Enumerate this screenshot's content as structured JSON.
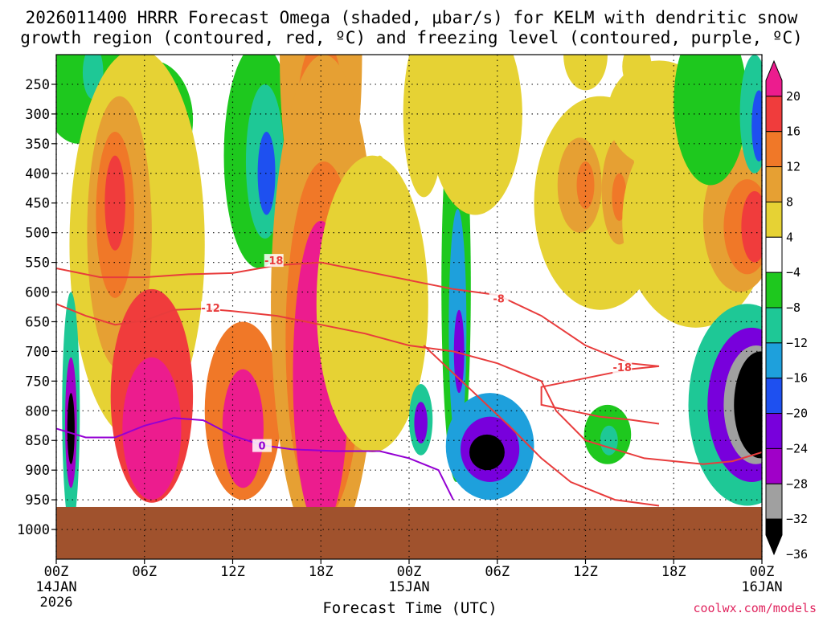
{
  "chart_data": {
    "type": "heatmap",
    "title_line1": "2026011400 HRRR Forecast Omega (shaded, μbar/s) for KELM with dendritic snow",
    "title_line2": "growth region (contoured, red, ºC) and freezing level (contoured, purple, ºC)",
    "xlabel": "Forecast Time (UTC)",
    "credit": "coolwx.com/models",
    "x_range_hours": [
      0,
      48
    ],
    "y_range_hpa": [
      200,
      1050
    ],
    "x_ticks": [
      {
        "hour": 0,
        "label": "00Z",
        "sub1": "14JAN",
        "sub2": "2026"
      },
      {
        "hour": 6,
        "label": "06Z",
        "sub1": "",
        "sub2": ""
      },
      {
        "hour": 12,
        "label": "12Z",
        "sub1": "",
        "sub2": ""
      },
      {
        "hour": 18,
        "label": "18Z",
        "sub1": "",
        "sub2": ""
      },
      {
        "hour": 24,
        "label": "00Z",
        "sub1": "15JAN",
        "sub2": ""
      },
      {
        "hour": 30,
        "label": "06Z",
        "sub1": "",
        "sub2": ""
      },
      {
        "hour": 36,
        "label": "12Z",
        "sub1": "",
        "sub2": ""
      },
      {
        "hour": 42,
        "label": "18Z",
        "sub1": "",
        "sub2": ""
      },
      {
        "hour": 48,
        "label": "00Z",
        "sub1": "16JAN",
        "sub2": ""
      }
    ],
    "y_ticks": [
      {
        "p": 250,
        "label": "250"
      },
      {
        "p": 300,
        "label": "300"
      },
      {
        "p": 350,
        "label": "350"
      },
      {
        "p": 400,
        "label": "400"
      },
      {
        "p": 450,
        "label": "450"
      },
      {
        "p": 500,
        "label": "500"
      },
      {
        "p": 550,
        "label": "550"
      },
      {
        "p": 600,
        "label": "600"
      },
      {
        "p": 650,
        "label": "650"
      },
      {
        "p": 700,
        "label": "700"
      },
      {
        "p": 750,
        "label": "750"
      },
      {
        "p": 800,
        "label": "800"
      },
      {
        "p": 850,
        "label": "850"
      },
      {
        "p": 900,
        "label": "900"
      },
      {
        "p": 950,
        "label": "950"
      },
      {
        "p": 1000,
        "label": "1000"
      }
    ],
    "colorbar": {
      "labels": [
        "20",
        "16",
        "12",
        "8",
        "4",
        "−4",
        "−8",
        "−12",
        "−16",
        "−20",
        "−24",
        "−28",
        "−32",
        "−36"
      ],
      "colors": [
        "#ec1c8e",
        "#f03c3c",
        "#f07828",
        "#e6a033",
        "#e6d234",
        "#ffffff",
        "#1ec81e",
        "#1ec896",
        "#1ea0dc",
        "#1e50f0",
        "#7800dc",
        "#a000c8",
        "#a0a0a0",
        "#000000"
      ]
    },
    "surface": {
      "p_top": 962,
      "color": "#a0522d"
    },
    "omega_blobs": [
      {
        "t": 1.5,
        "p": 200,
        "rt": 3.0,
        "rp": 150,
        "v": -6
      },
      {
        "t": 2.5,
        "p": 230,
        "rt": 0.7,
        "rp": 45,
        "v": -10
      },
      {
        "t": 6.5,
        "p": 310,
        "rt": 2.8,
        "rp": 100,
        "v": -6
      },
      {
        "t": 13.8,
        "p": 370,
        "rt": 2.4,
        "rp": 190,
        "v": -6
      },
      {
        "t": 14.2,
        "p": 380,
        "rt": 1.3,
        "rp": 130,
        "v": -10
      },
      {
        "t": 14.3,
        "p": 400,
        "rt": 0.6,
        "rp": 70,
        "v": -16
      },
      {
        "t": 9.3,
        "p": 455,
        "rt": 0.3,
        "rp": 20,
        "v": -6
      },
      {
        "t": 5.5,
        "p": 520,
        "rt": 4.6,
        "rp": 330,
        "v": 5
      },
      {
        "t": 4.3,
        "p": 500,
        "rt": 2.2,
        "rp": 230,
        "v": 8
      },
      {
        "t": 4.0,
        "p": 470,
        "rt": 1.3,
        "rp": 140,
        "v": 12
      },
      {
        "t": 4.0,
        "p": 450,
        "rt": 0.7,
        "rp": 80,
        "v": 16
      },
      {
        "t": 6.5,
        "p": 775,
        "rt": 2.8,
        "rp": 180,
        "v": 16
      },
      {
        "t": 6.5,
        "p": 830,
        "rt": 2.0,
        "rp": 120,
        "v": 21
      },
      {
        "t": 1.0,
        "p": 800,
        "rt": 0.6,
        "rp": 200,
        "v": -10
      },
      {
        "t": 1.0,
        "p": 820,
        "rt": 0.4,
        "rp": 110,
        "v": -24
      },
      {
        "t": 1.0,
        "p": 830,
        "rt": 0.25,
        "rp": 60,
        "v": -40
      },
      {
        "t": 12.7,
        "p": 800,
        "rt": 2.6,
        "rp": 150,
        "v": 12
      },
      {
        "t": 12.7,
        "p": 830,
        "rt": 1.4,
        "rp": 100,
        "v": 21
      },
      {
        "t": 18.0,
        "p": 200,
        "rt": 2.8,
        "rp": 330,
        "v": 8
      },
      {
        "t": 18.0,
        "p": 300,
        "rt": 1.6,
        "rp": 130,
        "v": 12
      },
      {
        "t": 18.2,
        "p": 620,
        "rt": 3.6,
        "rp": 420,
        "v": 9
      },
      {
        "t": 18.2,
        "p": 680,
        "rt": 2.6,
        "rp": 300,
        "v": 14
      },
      {
        "t": 18.0,
        "p": 740,
        "rt": 1.9,
        "rp": 260,
        "v": 21
      },
      {
        "t": 21.5,
        "p": 620,
        "rt": 3.8,
        "rp": 250,
        "v": 5
      },
      {
        "t": 25.0,
        "p": 300,
        "rt": 1.4,
        "rp": 140,
        "v": 5
      },
      {
        "t": 22.0,
        "p": 430,
        "rt": 0.6,
        "rp": 60,
        "v": 5
      },
      {
        "t": 27.2,
        "p": 590,
        "rt": 1.0,
        "rp": 330,
        "v": -6
      },
      {
        "t": 27.3,
        "p": 660,
        "rt": 0.6,
        "rp": 200,
        "v": -12
      },
      {
        "t": 27.4,
        "p": 700,
        "rt": 0.35,
        "rp": 70,
        "v": -20
      },
      {
        "t": 29.5,
        "p": 860,
        "rt": 3.0,
        "rp": 90,
        "v": -12
      },
      {
        "t": 29.5,
        "p": 865,
        "rt": 2.0,
        "rp": 55,
        "v": -22
      },
      {
        "t": 29.3,
        "p": 870,
        "rt": 1.2,
        "rp": 30,
        "v": -33
      },
      {
        "t": 29.3,
        "p": 872,
        "rt": 0.5,
        "rp": 15,
        "v": -40
      },
      {
        "t": 24.8,
        "p": 815,
        "rt": 0.8,
        "rp": 60,
        "v": -10
      },
      {
        "t": 24.8,
        "p": 820,
        "rt": 0.45,
        "rp": 35,
        "v": -20
      },
      {
        "t": 28.5,
        "p": 300,
        "rt": 3.2,
        "rp": 170,
        "v": 5
      },
      {
        "t": 37.0,
        "p": 450,
        "rt": 4.5,
        "rp": 180,
        "v": 5
      },
      {
        "t": 35.6,
        "p": 420,
        "rt": 1.5,
        "rp": 80,
        "v": 10
      },
      {
        "t": 38.3,
        "p": 430,
        "rt": 1.2,
        "rp": 90,
        "v": 10
      },
      {
        "t": 36.0,
        "p": 420,
        "rt": 0.6,
        "rp": 40,
        "v": 14
      },
      {
        "t": 38.3,
        "p": 440,
        "rt": 0.5,
        "rp": 40,
        "v": 14
      },
      {
        "t": 36.0,
        "p": 200,
        "rt": 1.5,
        "rp": 60,
        "v": 5
      },
      {
        "t": 41.0,
        "p": 300,
        "rt": 3.5,
        "rp": 90,
        "v": 5
      },
      {
        "t": 39.5,
        "p": 220,
        "rt": 1.0,
        "rp": 40,
        "v": 5
      },
      {
        "t": 43.5,
        "p": 480,
        "rt": 5.0,
        "rp": 180,
        "v": 5
      },
      {
        "t": 46.5,
        "p": 480,
        "rt": 2.5,
        "rp": 120,
        "v": 9
      },
      {
        "t": 47.0,
        "p": 490,
        "rt": 1.6,
        "rp": 80,
        "v": 14
      },
      {
        "t": 47.5,
        "p": 490,
        "rt": 0.9,
        "rp": 60,
        "v": 18
      },
      {
        "t": 44.5,
        "p": 280,
        "rt": 2.5,
        "rp": 140,
        "v": -6
      },
      {
        "t": 47.5,
        "p": 300,
        "rt": 1.0,
        "rp": 100,
        "v": -10
      },
      {
        "t": 47.8,
        "p": 320,
        "rt": 0.5,
        "rp": 60,
        "v": -16
      },
      {
        "t": 47.0,
        "p": 790,
        "rt": 4.0,
        "rp": 170,
        "v": -10
      },
      {
        "t": 47.3,
        "p": 790,
        "rt": 3.0,
        "rp": 130,
        "v": -20
      },
      {
        "t": 47.6,
        "p": 790,
        "rt": 2.2,
        "rp": 100,
        "v": -30
      },
      {
        "t": 47.9,
        "p": 790,
        "rt": 1.8,
        "rp": 90,
        "v": -40
      },
      {
        "t": 37.5,
        "p": 840,
        "rt": 1.6,
        "rp": 50,
        "v": -7
      },
      {
        "t": 37.6,
        "p": 850,
        "rt": 0.6,
        "rp": 25,
        "v": -11
      }
    ],
    "contours": [
      {
        "name": "dgz-top-minus18",
        "label": "-18",
        "label_t": 14.8,
        "label_p": 548,
        "color": "#e83c3c",
        "points": [
          [
            0,
            560
          ],
          [
            3,
            575
          ],
          [
            6,
            575
          ],
          [
            9,
            570
          ],
          [
            12,
            568
          ],
          [
            15,
            555
          ],
          [
            18,
            550
          ],
          [
            21,
            565
          ],
          [
            24,
            580
          ],
          [
            27,
            595
          ],
          [
            30,
            605
          ],
          [
            33,
            640
          ],
          [
            36,
            690
          ],
          [
            39,
            720
          ],
          [
            41,
            725
          ],
          [
            39,
            730
          ],
          [
            36,
            745
          ],
          [
            33,
            760
          ],
          [
            33,
            790
          ],
          [
            35,
            800
          ],
          [
            37,
            810
          ],
          [
            39,
            815
          ],
          [
            41,
            822
          ]
        ]
      },
      {
        "name": "dgz-label-minus18-b",
        "label": "-8",
        "label_t": 30.1,
        "label_p": 612,
        "color": "#e83c3c",
        "points": []
      },
      {
        "name": "dgz-mid-minus12",
        "label": "-12",
        "label_t": 10.5,
        "label_p": 628,
        "color": "#e83c3c",
        "points": [
          [
            0,
            620
          ],
          [
            2,
            640
          ],
          [
            4,
            655
          ],
          [
            6,
            648
          ],
          [
            8,
            630
          ],
          [
            10,
            628
          ],
          [
            12,
            632
          ],
          [
            15,
            640
          ],
          [
            18,
            655
          ],
          [
            21,
            670
          ],
          [
            24,
            690
          ],
          [
            27,
            700
          ],
          [
            30,
            720
          ],
          [
            33,
            750
          ],
          [
            34,
            800
          ],
          [
            36,
            850
          ],
          [
            40,
            880
          ],
          [
            44,
            890
          ],
          [
            46,
            885
          ],
          [
            48,
            870
          ]
        ]
      },
      {
        "name": "dgz-right-minus18",
        "label": "-18",
        "label_t": 38.5,
        "label_p": 728,
        "color": "#e83c3c",
        "points": []
      },
      {
        "name": "dgz-lower",
        "label": "",
        "label_t": 0,
        "label_p": 0,
        "color": "#e83c3c",
        "points": [
          [
            25,
            690
          ],
          [
            28,
            760
          ],
          [
            31,
            830
          ],
          [
            33,
            880
          ],
          [
            35,
            920
          ],
          [
            38,
            950
          ],
          [
            41,
            960
          ]
        ]
      },
      {
        "name": "freezing-level-0",
        "label": "0",
        "label_t": 14.0,
        "label_p": 860,
        "color": "#9400d3",
        "points": [
          [
            0,
            830
          ],
          [
            2,
            845
          ],
          [
            4,
            845
          ],
          [
            6,
            825
          ],
          [
            8,
            812
          ],
          [
            10,
            816
          ],
          [
            12,
            842
          ],
          [
            14,
            858
          ],
          [
            16,
            865
          ],
          [
            19,
            868
          ],
          [
            22,
            868
          ],
          [
            24,
            880
          ],
          [
            26,
            900
          ],
          [
            27,
            950
          ]
        ]
      }
    ]
  }
}
